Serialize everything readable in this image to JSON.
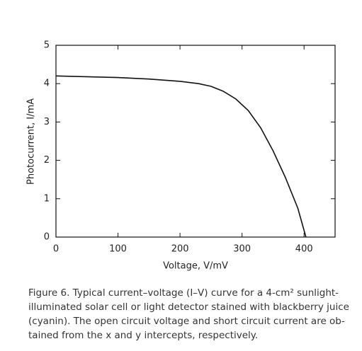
{
  "chart_data": {
    "type": "line",
    "x_label": "Voltage, V/mV",
    "y_label": "Photocurrent, I/mA",
    "caption": [
      "Figure 6. Typical current–voltage (I–V) curve for a 4-cm² sunlight-",
      "illuminated solar cell or light detector stained with blackberry juice",
      "(cyanin). The open circuit voltage and short circuit current are ob-",
      "tained from the x and y intercepts, respectively."
    ],
    "x": [
      0,
      50,
      100,
      150,
      200,
      230,
      250,
      270,
      290,
      310,
      330,
      350,
      370,
      390,
      403
    ],
    "series": [
      {
        "color": "#111111",
        "values": [
          4.2,
          4.18,
          4.16,
          4.12,
          4.06,
          4.0,
          3.93,
          3.8,
          3.6,
          3.3,
          2.85,
          2.25,
          1.55,
          0.75,
          0
        ]
      }
    ],
    "xlim": [
      0,
      450
    ],
    "xticks": [
      0,
      100,
      200,
      300,
      400
    ],
    "ylim": [
      0,
      5
    ],
    "yticks": [
      0,
      1,
      2,
      3,
      4,
      5
    ]
  }
}
